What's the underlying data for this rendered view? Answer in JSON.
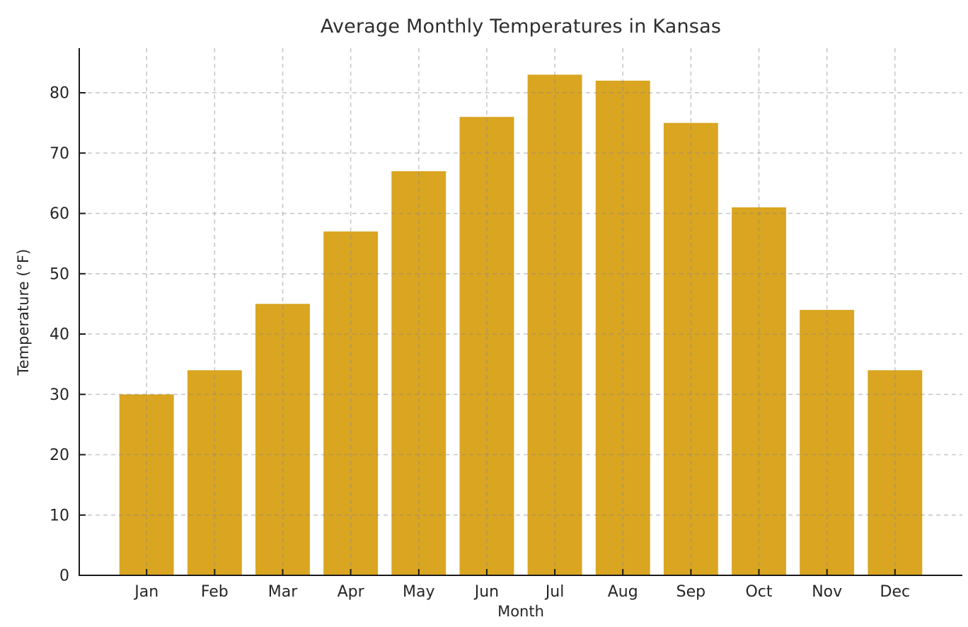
{
  "figure": {
    "background": "#ffffff"
  },
  "chart_data": {
    "type": "bar",
    "title": "Average Monthly Temperatures in Kansas",
    "xlabel": "Month",
    "ylabel": "Temperature (°F)",
    "categories": [
      "Jan",
      "Feb",
      "Mar",
      "Apr",
      "May",
      "Jun",
      "Jul",
      "Aug",
      "Sep",
      "Oct",
      "Nov",
      "Dec"
    ],
    "values": [
      30,
      34,
      45,
      57,
      67,
      76,
      83,
      82,
      75,
      61,
      44,
      34
    ],
    "yticks": [
      0,
      10,
      20,
      30,
      40,
      50,
      60,
      70,
      80
    ],
    "ylim": [
      0,
      87.4
    ],
    "bar_color": "#DAA520",
    "bar_width_fraction": 0.8,
    "grid": {
      "visible": true,
      "style": "dashed",
      "color": "#cccccc",
      "vertical": true,
      "horizontal": true
    },
    "axis_color": "#1a1a1a",
    "text_color": "#262626",
    "legend": null
  }
}
